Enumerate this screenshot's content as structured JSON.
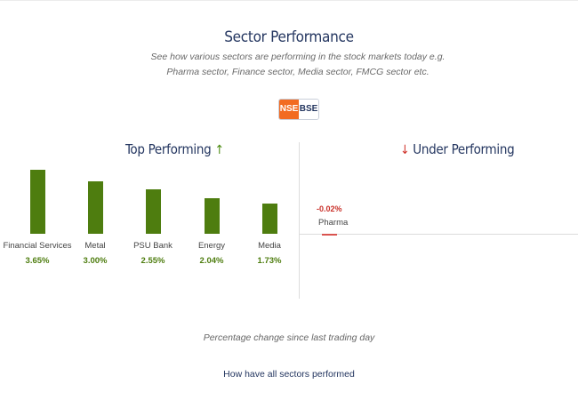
{
  "title": "Sector Performance",
  "subtitle": "See how various sectors are performing in the stock markets today e.g. Pharma sector, Finance sector, Media sector, FMCG sector etc.",
  "toggle": {
    "nse": "NSE",
    "bse": "BSE",
    "selected": "NSE"
  },
  "top": {
    "heading": "Top Performing",
    "arrow": "↑",
    "items": [
      {
        "label": "Financial Services",
        "value": "3.65%",
        "num": 3.65
      },
      {
        "label": "Metal",
        "value": "3.00%",
        "num": 3.0
      },
      {
        "label": "PSU Bank",
        "value": "2.55%",
        "num": 2.55
      },
      {
        "label": "Energy",
        "value": "2.04%",
        "num": 2.04
      },
      {
        "label": "Media",
        "value": "1.73%",
        "num": 1.73
      }
    ]
  },
  "under": {
    "heading": "Under Performing",
    "arrow": "↓",
    "items": [
      {
        "label": "Pharma",
        "value": "-0.02%",
        "num": -0.02
      }
    ]
  },
  "footnote": "Percentage change since last trading day",
  "link": "How have all sectors performed",
  "colors": {
    "positive": "#4e7d0f",
    "negative": "#c9312a",
    "accent": "#f26b21",
    "navy": "#243660"
  }
}
